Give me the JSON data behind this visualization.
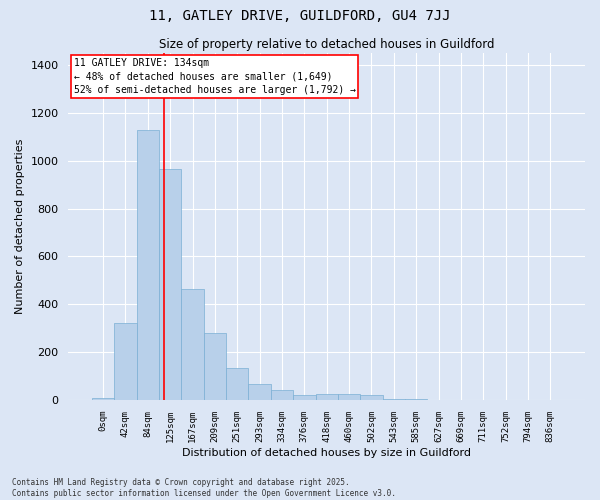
{
  "title_line1": "11, GATLEY DRIVE, GUILDFORD, GU4 7JJ",
  "title_line2": "Size of property relative to detached houses in Guildford",
  "xlabel": "Distribution of detached houses by size in Guildford",
  "ylabel": "Number of detached properties",
  "bar_color": "#b8d0ea",
  "bar_edge_color": "#7aafd4",
  "background_color": "#dce6f5",
  "grid_color": "#ffffff",
  "categories": [
    "0sqm",
    "42sqm",
    "84sqm",
    "125sqm",
    "167sqm",
    "209sqm",
    "251sqm",
    "293sqm",
    "334sqm",
    "376sqm",
    "418sqm",
    "460sqm",
    "502sqm",
    "543sqm",
    "585sqm",
    "627sqm",
    "669sqm",
    "711sqm",
    "752sqm",
    "794sqm",
    "836sqm"
  ],
  "values": [
    10,
    320,
    1130,
    965,
    465,
    280,
    135,
    68,
    40,
    22,
    25,
    25,
    20,
    5,
    2,
    0,
    0,
    0,
    0,
    0,
    0
  ],
  "ylim": [
    0,
    1450
  ],
  "yticks": [
    0,
    200,
    400,
    600,
    800,
    1000,
    1200,
    1400
  ],
  "annotation_line1": "11 GATLEY DRIVE: 134sqm",
  "annotation_line2": "← 48% of detached houses are smaller (1,649)",
  "annotation_line3": "52% of semi-detached houses are larger (1,792) →",
  "footer_line1": "Contains HM Land Registry data © Crown copyright and database right 2025.",
  "footer_line2": "Contains public sector information licensed under the Open Government Licence v3.0.",
  "vline_pos": 2.73
}
